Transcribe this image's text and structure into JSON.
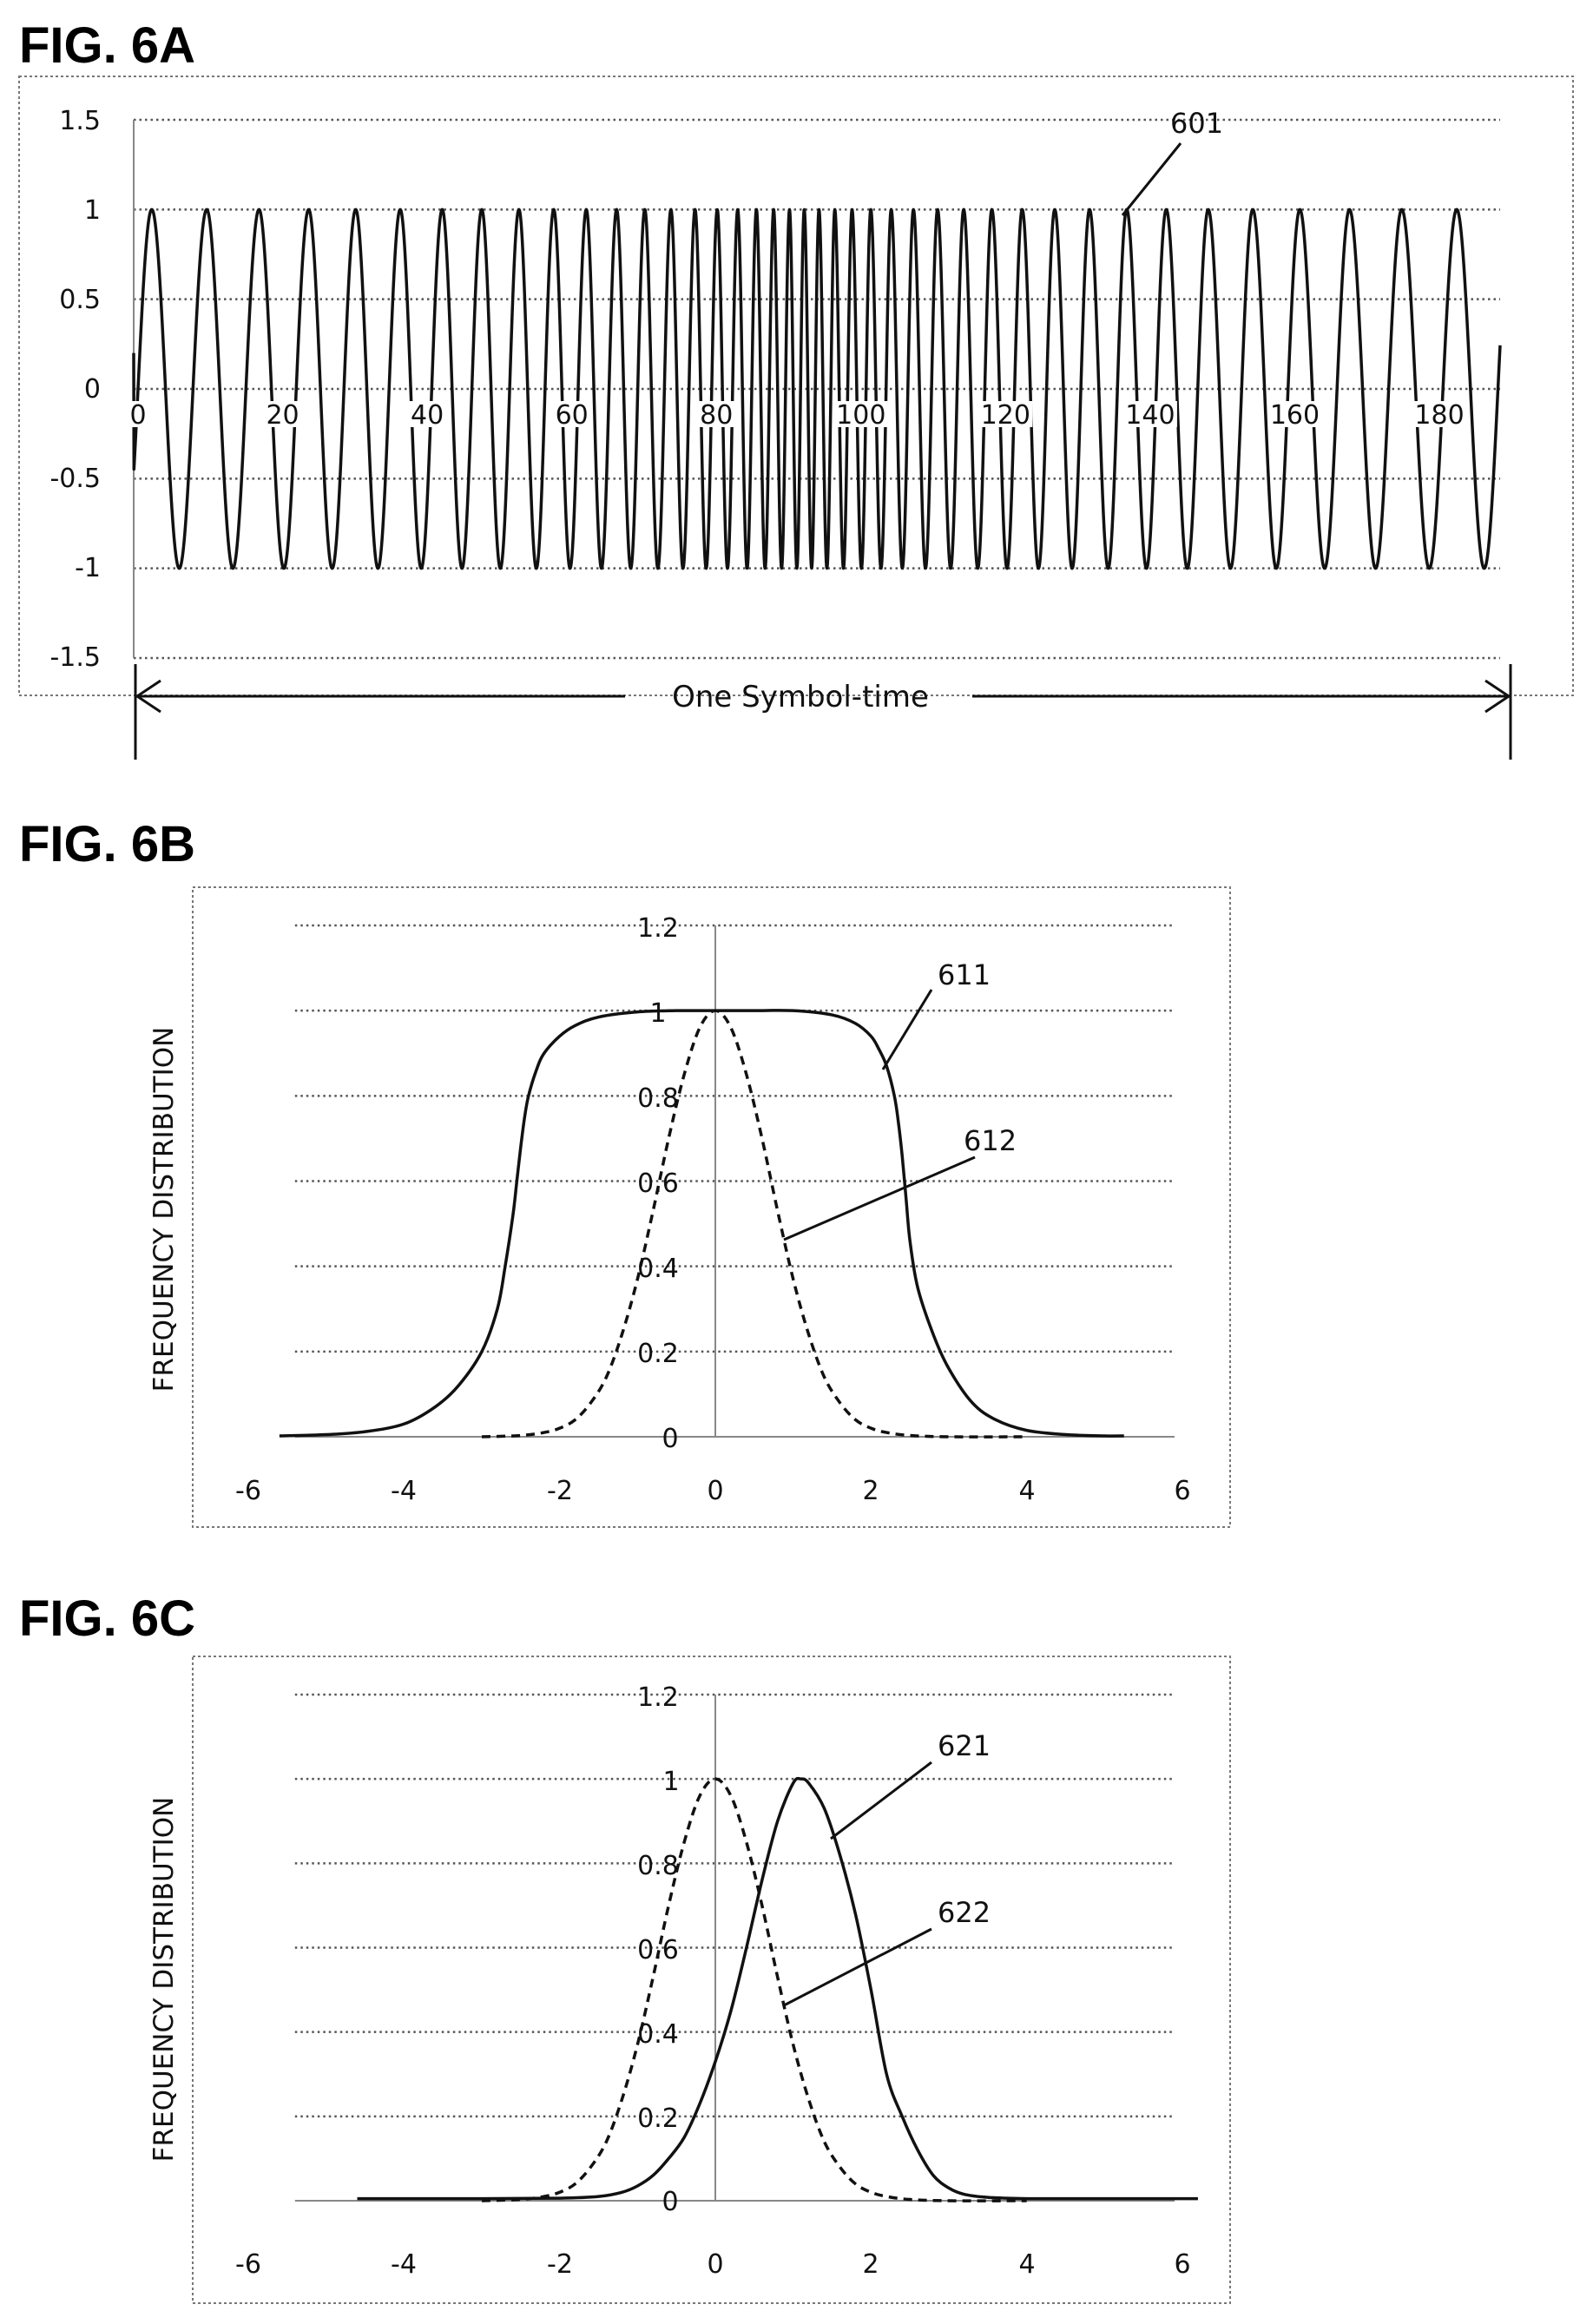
{
  "chart_data": [
    {
      "id": "fig6a",
      "title": "FIG. 6A",
      "type": "line",
      "xlabel": "",
      "ylabel": "",
      "xlim": [
        0,
        189
      ],
      "ylim": [
        -1.5,
        1.5
      ],
      "x_ticks": [
        "0",
        "20",
        "40",
        "60",
        "80",
        "100",
        "120",
        "140",
        "160",
        "180"
      ],
      "y_ticks": [
        "1.5",
        "1",
        "0.5",
        "0",
        "-0.5",
        "-1",
        "-1.5"
      ],
      "grid": "horizontal dotted",
      "description_values": {
        "x_start": 0,
        "x_end": 189,
        "y_start": 0.2,
        "cycles": 41,
        "peak_x_first": 2.5,
        "peak_x_last": 183
      },
      "series": [
        {
          "name": "601",
          "style": "solid",
          "kind": "chirp"
        }
      ],
      "annotations": [
        {
          "label": "601",
          "target_x": 136,
          "target_y": 0.95
        }
      ],
      "span_label": "One Symbol-time"
    },
    {
      "id": "fig6b",
      "title": "FIG. 6B",
      "type": "line",
      "xlabel": "",
      "ylabel": "FREQUENCY DISTRIBUTION",
      "xlim": [
        -6,
        6
      ],
      "ylim": [
        0,
        1.2
      ],
      "x_ticks": [
        "-6",
        "-4",
        "-2",
        "0",
        "2",
        "4",
        "6"
      ],
      "y_ticks": [
        "1.2",
        "1",
        "0.8",
        "0.6",
        "0.4",
        "0.2",
        "0"
      ],
      "grid": "horizontal dotted",
      "series": [
        {
          "name": "611",
          "style": "solid",
          "x": [
            -5.6,
            -5.0,
            -4.5,
            -4.0,
            -3.6,
            -3.3,
            -3.0,
            -2.8,
            -2.7,
            -2.6,
            -2.55,
            -2.5,
            -2.45,
            -2.4,
            -2.3,
            -2.2,
            -2.0,
            -1.8,
            -1.5,
            -1.0,
            -0.5,
            0.0,
            0.5,
            1.0,
            1.5,
            1.8,
            2.0,
            2.1,
            2.2,
            2.3,
            2.35,
            2.4,
            2.45,
            2.5,
            2.6,
            2.8,
            3.0,
            3.3,
            3.6,
            4.0,
            4.5,
            5.0,
            5.25
          ],
          "y": [
            0.002,
            0.005,
            0.012,
            0.03,
            0.07,
            0.12,
            0.2,
            0.3,
            0.4,
            0.52,
            0.6,
            0.68,
            0.75,
            0.8,
            0.86,
            0.9,
            0.94,
            0.965,
            0.985,
            0.997,
            1.0,
            1.0,
            1.0,
            1.0,
            0.99,
            0.97,
            0.94,
            0.91,
            0.87,
            0.8,
            0.74,
            0.66,
            0.56,
            0.46,
            0.35,
            0.24,
            0.16,
            0.08,
            0.04,
            0.015,
            0.005,
            0.002,
            0.002
          ]
        },
        {
          "name": "612",
          "style": "dashed",
          "x": [
            -3.0,
            -2.5,
            -2.2,
            -2.0,
            -1.8,
            -1.6,
            -1.4,
            -1.2,
            -1.0,
            -0.8,
            -0.6,
            -0.4,
            -0.2,
            0.0,
            0.2,
            0.4,
            0.6,
            0.8,
            1.0,
            1.2,
            1.4,
            1.6,
            1.8,
            2.0,
            2.2,
            2.5,
            3.0,
            4.0
          ],
          "y": [
            0.0,
            0.003,
            0.01,
            0.02,
            0.04,
            0.08,
            0.14,
            0.24,
            0.37,
            0.53,
            0.7,
            0.85,
            0.96,
            1.0,
            0.96,
            0.85,
            0.7,
            0.53,
            0.37,
            0.24,
            0.14,
            0.08,
            0.04,
            0.02,
            0.01,
            0.003,
            0.0,
            0.0
          ]
        }
      ],
      "annotations": [
        {
          "label": "611",
          "target_x": 2.2,
          "target_y": 0.87
        },
        {
          "label": "612",
          "target_x": 0.8,
          "target_y": 0.47
        }
      ]
    },
    {
      "id": "fig6c",
      "title": "FIG. 6C",
      "type": "line",
      "xlabel": "",
      "ylabel": "FREQUENCY DISTRIBUTION",
      "xlim": [
        -6,
        6
      ],
      "ylim": [
        0,
        1.2
      ],
      "x_ticks": [
        "-6",
        "-4",
        "-2",
        "0",
        "2",
        "4",
        "6"
      ],
      "y_ticks": [
        "1.2",
        "1",
        "0.8",
        "0.6",
        "0.4",
        "0.2",
        "0"
      ],
      "grid": "horizontal dotted",
      "series": [
        {
          "name": "621",
          "style": "solid",
          "x": [
            -4.6,
            -3.0,
            -2.0,
            -1.5,
            -1.2,
            -1.0,
            -0.8,
            -0.6,
            -0.4,
            -0.2,
            0.0,
            0.2,
            0.4,
            0.6,
            0.8,
            1.0,
            1.1,
            1.2,
            1.4,
            1.6,
            1.8,
            2.0,
            2.2,
            2.4,
            2.6,
            2.8,
            3.0,
            3.2,
            3.5,
            4.0,
            5.0,
            6.2
          ],
          "y": [
            0.005,
            0.005,
            0.006,
            0.01,
            0.02,
            0.035,
            0.06,
            0.1,
            0.15,
            0.23,
            0.33,
            0.45,
            0.6,
            0.76,
            0.9,
            0.99,
            1.0,
            0.99,
            0.93,
            0.82,
            0.68,
            0.5,
            0.3,
            0.2,
            0.12,
            0.06,
            0.03,
            0.015,
            0.008,
            0.005,
            0.005,
            0.005
          ]
        },
        {
          "name": "622",
          "style": "dashed",
          "x": [
            -3.0,
            -2.5,
            -2.2,
            -2.0,
            -1.8,
            -1.6,
            -1.4,
            -1.2,
            -1.0,
            -0.8,
            -0.6,
            -0.4,
            -0.2,
            0.0,
            0.2,
            0.4,
            0.6,
            0.8,
            1.0,
            1.2,
            1.4,
            1.6,
            1.8,
            2.0,
            2.2,
            2.5,
            3.0,
            4.0
          ],
          "y": [
            0.0,
            0.003,
            0.01,
            0.02,
            0.04,
            0.08,
            0.14,
            0.24,
            0.37,
            0.53,
            0.7,
            0.85,
            0.96,
            1.0,
            0.96,
            0.85,
            0.7,
            0.53,
            0.37,
            0.24,
            0.14,
            0.08,
            0.04,
            0.02,
            0.01,
            0.003,
            0.0,
            0.0
          ]
        }
      ],
      "annotations": [
        {
          "label": "621",
          "target_x": 1.5,
          "target_y": 0.87
        },
        {
          "label": "622",
          "target_x": 0.8,
          "target_y": 0.47
        }
      ]
    }
  ]
}
